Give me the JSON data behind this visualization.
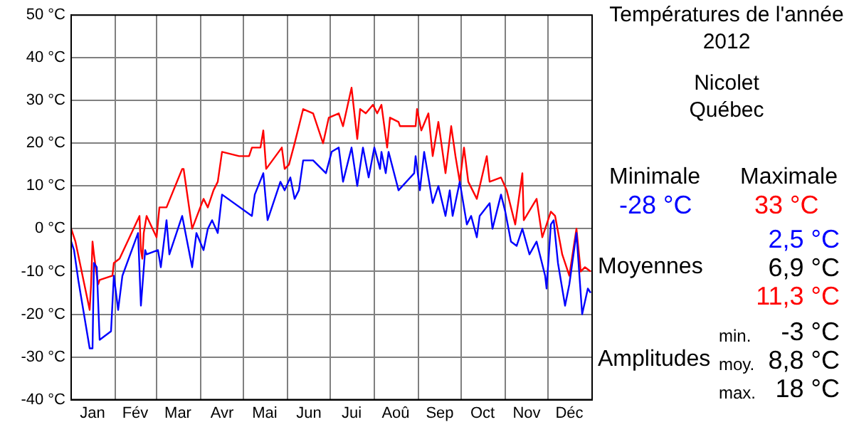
{
  "chart_data": {
    "type": "line",
    "title": "Températures de l'année 2012",
    "subtitle": "Nicolet\nQuébec",
    "series": [
      {
        "type": "line",
        "color": "#0000ff",
        "x": [
          "2012-01-01",
          "2012-01-03",
          "2012-01-06",
          "2012-01-14",
          "2012-01-16",
          "2012-01-17",
          "2012-01-19",
          "2012-01-21",
          "2012-01-29",
          "2012-01-31",
          "2012-02-03",
          "2012-02-06",
          "2012-02-17",
          "2012-02-19",
          "2012-02-22",
          "2012-02-23",
          "2012-03-02",
          "2012-03-04",
          "2012-03-08",
          "2012-03-10",
          "2012-03-19",
          "2012-03-26",
          "2012-03-29",
          "2012-04-03",
          "2012-04-06",
          "2012-04-09",
          "2012-04-13",
          "2012-04-16",
          "2012-05-07",
          "2012-05-09",
          "2012-05-15",
          "2012-05-18",
          "2012-05-27",
          "2012-05-30",
          "2012-06-03",
          "2012-06-06",
          "2012-06-09",
          "2012-06-12",
          "2012-06-19",
          "2012-06-28",
          "2012-07-02",
          "2012-07-07",
          "2012-07-10",
          "2012-07-16",
          "2012-07-20",
          "2012-07-24",
          "2012-07-28",
          "2012-08-01",
          "2012-08-05",
          "2012-08-06",
          "2012-08-09",
          "2012-08-11",
          "2012-08-18",
          "2012-08-29",
          "2012-08-30",
          "2012-09-02",
          "2012-09-05",
          "2012-09-11",
          "2012-09-15",
          "2012-09-20",
          "2012-09-23",
          "2012-09-25",
          "2012-09-30",
          "2012-10-05",
          "2012-10-08",
          "2012-10-12",
          "2012-10-14",
          "2012-10-21",
          "2012-10-23",
          "2012-10-29",
          "2012-11-01",
          "2012-11-05",
          "2012-11-09",
          "2012-11-13",
          "2012-11-18",
          "2012-11-23",
          "2012-11-26",
          "2012-11-29",
          "2012-11-30",
          "2012-12-03",
          "2012-12-05",
          "2012-12-08",
          "2012-12-13",
          "2012-12-16",
          "2012-12-21",
          "2012-12-25",
          "2012-12-29",
          "2012-12-31"
        ],
        "values": [
          -3,
          -5,
          -12,
          -28,
          -28,
          -8,
          -9,
          -26,
          -24,
          -11,
          -19,
          -11,
          -1,
          -18,
          -5,
          -6,
          -5,
          -9,
          2,
          -6,
          3,
          -9,
          -1,
          -5,
          0,
          2,
          -1,
          8,
          3,
          8,
          13,
          2,
          11,
          9,
          12,
          7,
          9,
          16,
          16,
          13,
          18,
          19,
          11,
          19,
          10,
          19,
          12,
          19,
          14,
          18,
          13,
          18,
          9,
          13,
          17,
          9,
          18,
          6,
          10,
          3,
          9,
          3,
          11,
          1,
          3,
          -2,
          3,
          6,
          0,
          8,
          4,
          -3,
          -4,
          0,
          -6,
          -3,
          -7,
          -11,
          -14,
          1,
          2,
          -8,
          -18,
          -13,
          -1,
          -20,
          -14,
          -15
        ]
      },
      {
        "type": "line",
        "color": "#ff0000",
        "x": [
          "2012-01-01",
          "2012-01-04",
          "2012-01-14",
          "2012-01-15",
          "2012-01-16",
          "2012-01-17",
          "2012-01-19",
          "2012-01-20",
          "2012-01-21",
          "2012-01-30",
          "2012-01-31",
          "2012-02-04",
          "2012-02-18",
          "2012-02-19",
          "2012-02-20",
          "2012-02-21",
          "2012-02-23",
          "2012-03-01",
          "2012-03-03",
          "2012-03-08",
          "2012-03-19",
          "2012-03-20",
          "2012-03-26",
          "2012-04-03",
          "2012-04-06",
          "2012-04-10",
          "2012-04-13",
          "2012-04-16",
          "2012-04-28",
          "2012-05-05",
          "2012-05-07",
          "2012-05-13",
          "2012-05-15",
          "2012-05-17",
          "2012-05-28",
          "2012-05-30",
          "2012-06-02",
          "2012-06-06",
          "2012-06-12",
          "2012-06-19",
          "2012-06-26",
          "2012-06-30",
          "2012-07-07",
          "2012-07-10",
          "2012-07-12",
          "2012-07-16",
          "2012-07-20",
          "2012-07-22",
          "2012-07-26",
          "2012-07-31",
          "2012-08-03",
          "2012-08-06",
          "2012-08-10",
          "2012-08-12",
          "2012-08-18",
          "2012-08-19",
          "2012-08-30",
          "2012-08-31",
          "2012-09-03",
          "2012-09-08",
          "2012-09-11",
          "2012-09-15",
          "2012-09-20",
          "2012-09-24",
          "2012-09-27",
          "2012-09-30",
          "2012-10-03",
          "2012-10-06",
          "2012-10-12",
          "2012-10-19",
          "2012-10-21",
          "2012-10-29",
          "2012-11-02",
          "2012-11-08",
          "2012-11-13",
          "2012-11-14",
          "2012-11-23",
          "2012-11-27",
          "2012-12-03",
          "2012-12-06",
          "2012-12-11",
          "2012-12-16",
          "2012-12-21",
          "2012-12-24",
          "2012-12-27",
          "2012-12-31"
        ],
        "values": [
          0,
          -3,
          -19,
          -13,
          -3,
          -6,
          -11,
          -13,
          -12,
          -11,
          -8,
          -7,
          3,
          -5,
          -7,
          -1,
          3,
          -2,
          5,
          5,
          14,
          14,
          0,
          7,
          5,
          9,
          11,
          18,
          17,
          17,
          19,
          19,
          23,
          14,
          19,
          14,
          15,
          20,
          28,
          27,
          20,
          26,
          27,
          24,
          27,
          33,
          21,
          28,
          27,
          29,
          27,
          29,
          19,
          26,
          25,
          24,
          24,
          28,
          23,
          27,
          17,
          25,
          13,
          24,
          17,
          11,
          19,
          11,
          7,
          17,
          11,
          12,
          9,
          1,
          13,
          2,
          7,
          -2,
          4,
          3,
          -6,
          -11,
          0,
          -10,
          -9,
          -10
        ]
      }
    ],
    "xlim": [
      "2012-01-01",
      "2013-01-01"
    ],
    "xticks": [
      {
        "value": "2012-01-01",
        "label": null
      },
      {
        "value": "2012-01-16",
        "label": "Jan"
      },
      {
        "value": "2012-02-01",
        "label": null
      },
      {
        "value": "2012-02-15",
        "label": "Fév"
      },
      {
        "value": "2012-03-01",
        "label": null
      },
      {
        "value": "2012-03-16",
        "label": "Mar"
      },
      {
        "value": "2012-04-01",
        "label": null
      },
      {
        "value": "2012-04-16",
        "label": "Avr"
      },
      {
        "value": "2012-05-01",
        "label": null
      },
      {
        "value": "2012-05-16",
        "label": "Mai"
      },
      {
        "value": "2012-06-01",
        "label": null
      },
      {
        "value": "2012-06-16",
        "label": "Jun"
      },
      {
        "value": "2012-07-01",
        "label": null
      },
      {
        "value": "2012-07-16",
        "label": "Jui"
      },
      {
        "value": "2012-08-01",
        "label": null
      },
      {
        "value": "2012-08-16",
        "label": "Aoû"
      },
      {
        "value": "2012-09-01",
        "label": null
      },
      {
        "value": "2012-09-16",
        "label": "Sep"
      },
      {
        "value": "2012-10-01",
        "label": null
      },
      {
        "value": "2012-10-16",
        "label": "Oct"
      },
      {
        "value": "2012-11-01",
        "label": null
      },
      {
        "value": "2012-11-16",
        "label": "Nov"
      },
      {
        "value": "2012-12-01",
        "label": null
      },
      {
        "value": "2012-12-16",
        "label": "Déc"
      },
      {
        "value": "2013-01-01",
        "label": null
      }
    ],
    "ylim": [
      -40,
      50
    ],
    "yticks": [
      {
        "value": -40,
        "label": "-40 °C"
      },
      {
        "value": -30,
        "label": "-30 °C"
      },
      {
        "value": -20,
        "label": "-20 °C"
      },
      {
        "value": -10,
        "label": "-10 °C"
      },
      {
        "value": 0,
        "label": "0 °C"
      },
      {
        "value": 10,
        "label": "10 °C"
      },
      {
        "value": 20,
        "label": "20 °C"
      },
      {
        "value": 30,
        "label": "30 °C"
      },
      {
        "value": 40,
        "label": "40 °C"
      },
      {
        "value": 50,
        "label": "50 °C"
      }
    ],
    "grid": true,
    "legend": false,
    "marker": "none",
    "line_style": "solid",
    "annotations": [
      "Minimale",
      "Maximale",
      "-28 °C",
      "33 °C",
      "2,5 °C",
      "Moyennes",
      "6,9 °C",
      "11,3 °C",
      "min.",
      "-3 °C",
      "Amplitudes",
      "moy.",
      "8,8 °C",
      "max.",
      "18 °C"
    ]
  }
}
